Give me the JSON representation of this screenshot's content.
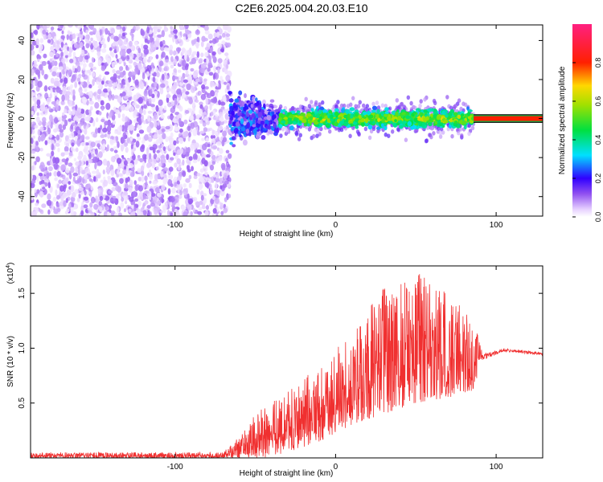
{
  "page": {
    "title": "C2E6.2025.004.20.03.E10"
  },
  "colors": {
    "snr_line": "#f03030",
    "frame": "#000000",
    "background": "#ffffff"
  },
  "chart_data": [
    {
      "type": "scatter",
      "title": "C2E6.2025.004.20.03.E10",
      "xlabel": "Height of straight line (km)",
      "ylabel": "Frequency (Hz)",
      "xlim": [
        -190,
        129
      ],
      "ylim": [
        -50,
        48
      ],
      "x_ticks": [
        -100,
        0,
        100
      ],
      "x_tick_labels": [
        "-100",
        "0",
        "100"
      ],
      "y_ticks": [
        -40,
        -20,
        0,
        20,
        40
      ],
      "y_tick_labels": [
        "-40",
        "-20",
        "0",
        "20",
        "40"
      ],
      "grid": false,
      "colorbar": {
        "label": "Normalized spectral amplitude",
        "range": [
          0,
          1
        ],
        "ticks": [
          0.0,
          0.2,
          0.4,
          0.6,
          0.8
        ],
        "tick_labels": [
          "0.0",
          "0.2",
          "0.4",
          "0.6",
          "0.8"
        ],
        "colormap": "rainbow (white-purple-blue-cyan-green-yellow-red-magenta)"
      },
      "regions": [
        {
          "name": "noise",
          "x_range": [
            -190,
            -66
          ],
          "freq_spread_hz": 50,
          "amplitude_range": [
            0.02,
            0.12
          ]
        },
        {
          "name": "transition",
          "x_range": [
            -66,
            -35
          ],
          "freq_spread_hz": 20,
          "amplitude_range": [
            0.05,
            0.3
          ]
        },
        {
          "name": "signal",
          "x_range": [
            -35,
            86
          ],
          "center_hz": 0,
          "half_width_hz": 8,
          "amplitude_range": [
            0.15,
            0.7
          ]
        },
        {
          "name": "tail_band",
          "x_range": [
            86,
            129
          ],
          "center_hz": 0,
          "half_width_hz": 2,
          "amplitude": 0.8
        }
      ]
    },
    {
      "type": "line",
      "title": "",
      "xlabel": "Height of straight line (km)",
      "ylabel": "SNR (10 * v/v)",
      "y_scale_label": "(x10",
      "y_scale_exponent": "4",
      "y_scale_suffix": ")",
      "xlim": [
        -190,
        129
      ],
      "ylim": [
        0,
        1.75
      ],
      "x_ticks": [
        -100,
        0,
        100
      ],
      "x_tick_labels": [
        "-100",
        "0",
        "100"
      ],
      "y_ticks": [
        0.5,
        1.0,
        1.5
      ],
      "y_tick_labels": [
        "0.5",
        "1.0",
        "1.5"
      ],
      "grid": false,
      "series": [
        {
          "name": "SNR",
          "color": "#f03030",
          "envelope": [
            {
              "x": -190,
              "low": 0.0,
              "high": 0.05
            },
            {
              "x": -70,
              "low": 0.0,
              "high": 0.05
            },
            {
              "x": -60,
              "low": 0.0,
              "high": 0.2
            },
            {
              "x": -45,
              "low": 0.0,
              "high": 0.5
            },
            {
              "x": -30,
              "low": 0.05,
              "high": 0.6
            },
            {
              "x": -10,
              "low": 0.15,
              "high": 0.85
            },
            {
              "x": 10,
              "low": 0.3,
              "high": 1.15
            },
            {
              "x": 30,
              "low": 0.4,
              "high": 1.55
            },
            {
              "x": 50,
              "low": 0.5,
              "high": 1.7
            },
            {
              "x": 70,
              "low": 0.55,
              "high": 1.5
            },
            {
              "x": 85,
              "low": 0.6,
              "high": 1.3
            },
            {
              "x": 92,
              "low": 0.85,
              "high": 0.95
            },
            {
              "x": 105,
              "low": 0.95,
              "high": 1.0
            },
            {
              "x": 129,
              "low": 0.92,
              "high": 0.96
            }
          ]
        }
      ]
    }
  ]
}
